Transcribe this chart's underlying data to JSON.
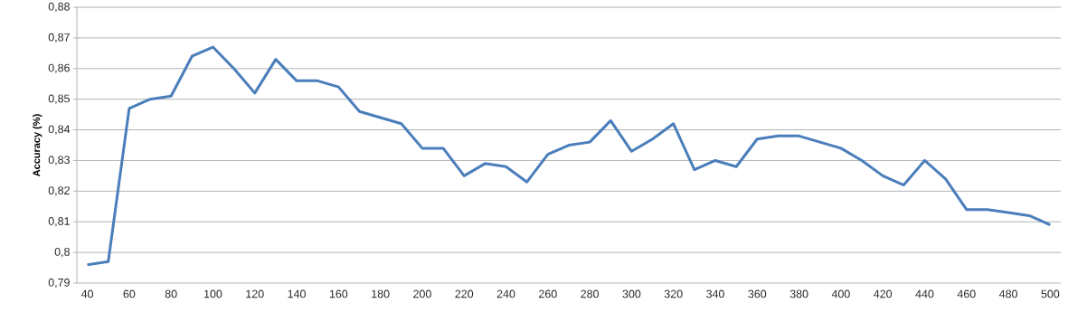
{
  "chart_data": {
    "type": "line",
    "ylabel": "Accuracy (%)",
    "categories": [
      "40",
      null,
      "60",
      null,
      "80",
      null,
      "100",
      null,
      "120",
      null,
      "140",
      null,
      "160",
      null,
      "180",
      null,
      "200",
      null,
      "220",
      null,
      "240",
      null,
      "260",
      null,
      "280",
      null,
      "300",
      null,
      "320",
      null,
      "340",
      null,
      "360",
      null,
      "380",
      null,
      "400",
      null,
      "420",
      null,
      "440",
      null,
      "460",
      null,
      "480",
      null,
      "500"
    ],
    "series": [
      {
        "color": "#4a7ebb",
        "values": [
          0.796,
          0.797,
          0.847,
          0.85,
          0.851,
          0.864,
          0.867,
          0.86,
          0.852,
          0.863,
          0.856,
          0.856,
          0.854,
          0.846,
          0.844,
          0.842,
          0.834,
          0.834,
          0.825,
          0.829,
          0.828,
          0.823,
          0.832,
          0.835,
          0.836,
          0.843,
          0.833,
          0.837,
          0.842,
          0.827,
          0.83,
          0.828,
          0.837,
          0.838,
          0.838,
          0.836,
          0.834,
          0.83,
          0.825,
          0.822,
          0.83,
          0.824,
          0.814,
          0.814,
          0.813,
          0.812,
          0.809
        ]
      }
    ],
    "ylim": [
      0.79,
      0.88
    ],
    "yticks": [
      {
        "value": 0.79,
        "label": "0,79"
      },
      {
        "value": 0.8,
        "label": "0,8"
      },
      {
        "value": 0.81,
        "label": "0,81"
      },
      {
        "value": 0.82,
        "label": "0,82"
      },
      {
        "value": 0.83,
        "label": "0,83"
      },
      {
        "value": 0.84,
        "label": "0,84"
      },
      {
        "value": 0.85,
        "label": "0,85"
      },
      {
        "value": 0.86,
        "label": "0,86"
      },
      {
        "value": 0.87,
        "label": "0,87"
      },
      {
        "value": 0.88,
        "label": "0,88"
      }
    ],
    "grid": "y",
    "marker": "none",
    "line_style": "solid"
  }
}
